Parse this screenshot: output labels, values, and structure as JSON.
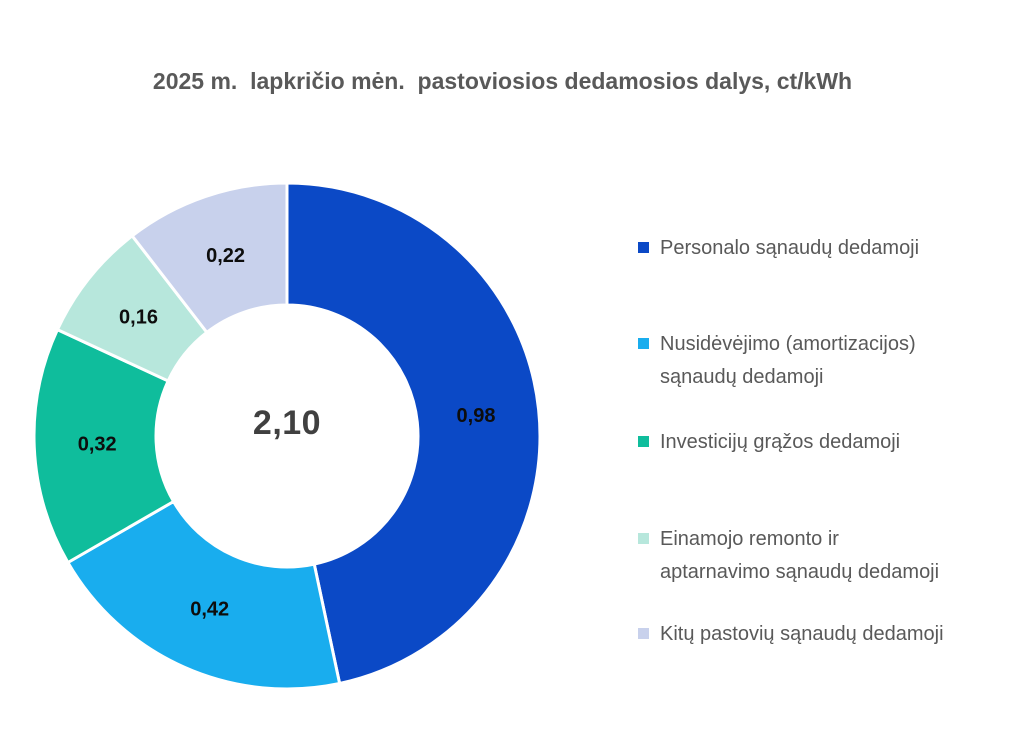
{
  "chart_data": {
    "type": "pie",
    "subtype": "donut",
    "title": "2025 m.  lapkričio mėn.  pastoviosios dedamosios dalys, ct/kWh",
    "units": "ct/kWh",
    "categories": [
      "Personalo sąnaudų dedamoji",
      "Nusidėvėjimo (amortizacijos) sąnaudų dedamoji",
      "Investicijų grąžos dedamoji",
      "Einamojo remonto ir aptarnavimo sąnaudų dedamoji",
      "Kitų pastovių sąnaudų dedamoji"
    ],
    "values": [
      0.98,
      0.42,
      0.32,
      0.16,
      0.22
    ],
    "value_labels": [
      "0,98",
      "0,42",
      "0,32",
      "0,16",
      "0,22"
    ],
    "colors": [
      "#0B49C6",
      "#19ADEE",
      "#0FBD9C",
      "#B7E7DC",
      "#C8D1EC"
    ],
    "total": 2.1,
    "center_label": "2,10",
    "start_angle_deg": 0,
    "clockwise": true,
    "legend_position": "right",
    "legend_lines": [
      [
        "Personalo sąnaudų dedamoji"
      ],
      [
        "Nusidėvėjimo (amortizacijos)",
        "sąnaudų dedamoji"
      ],
      [
        "Investicijų grąžos dedamoji"
      ],
      [
        "Einamojo remonto ir",
        "aptarnavimo sąnaudų dedamoji"
      ],
      [
        "Kitų pastovių sąnaudų dedamoji"
      ]
    ],
    "label_text_color": "#0d0d0d",
    "legend_text_color": "#595959",
    "title_color": "#595959",
    "center_label_color": "#404040",
    "slice_border_color": "#ffffff"
  }
}
